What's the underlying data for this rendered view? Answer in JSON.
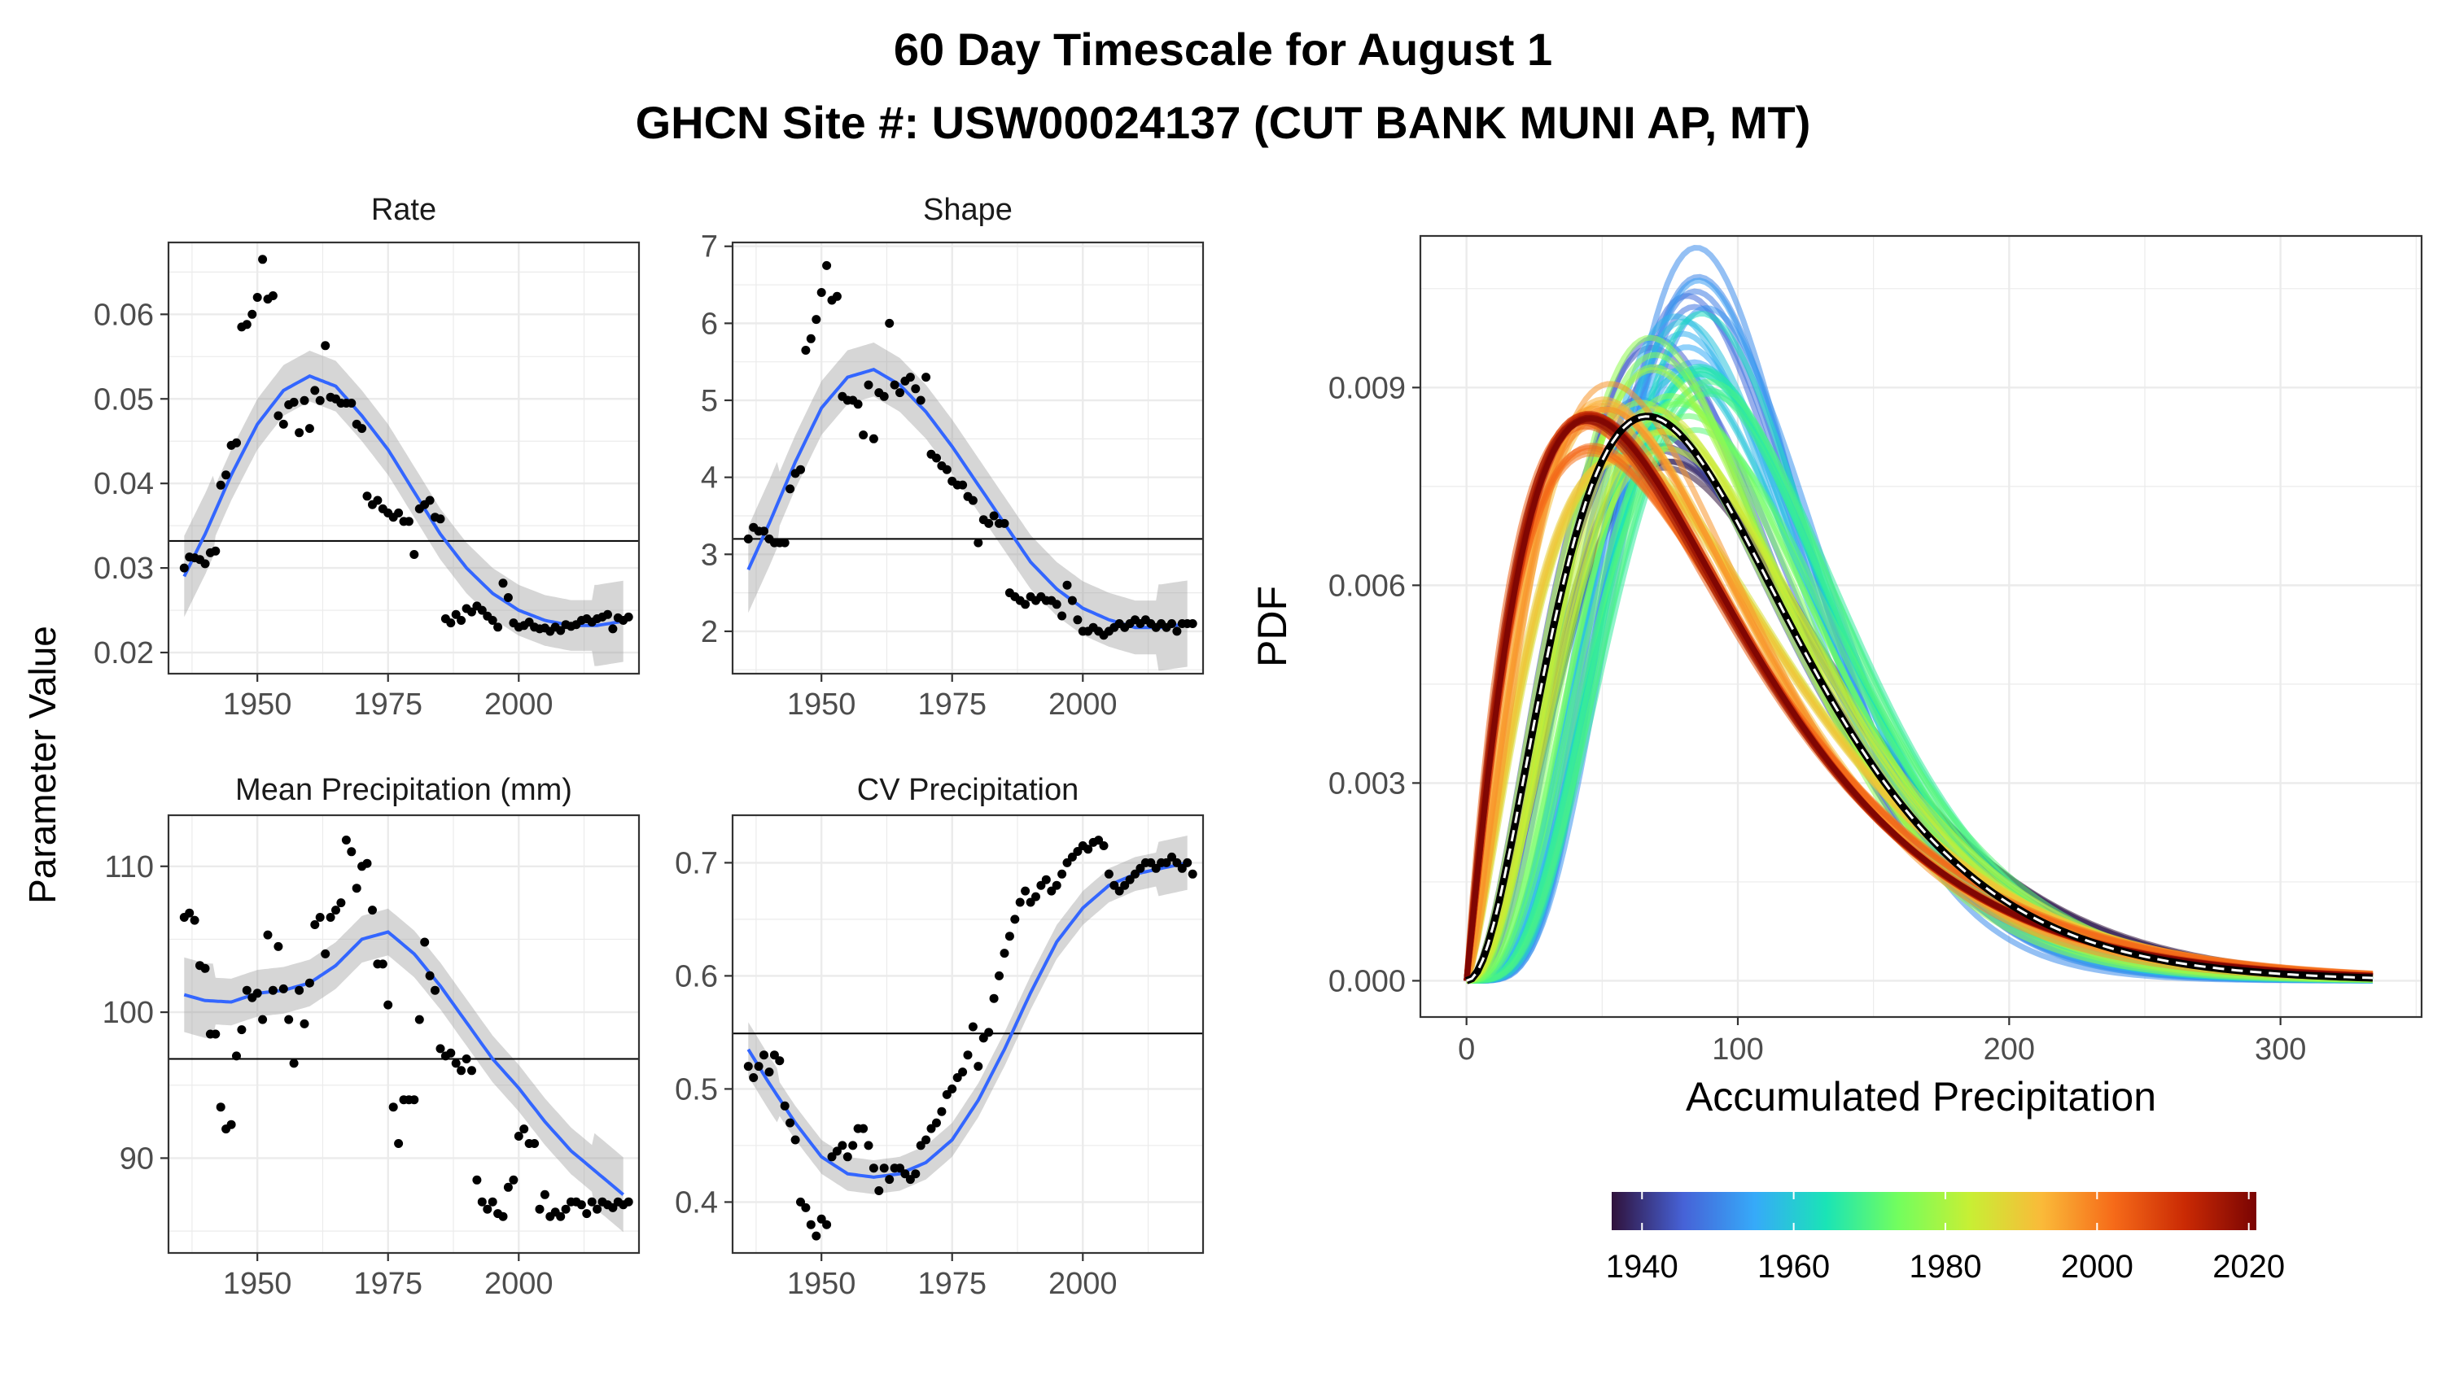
{
  "title": "60 Day Timescale for August 1",
  "subtitle": "GHCN Site #: USW00024137 (CUT BANK MUNI AP, MT)",
  "shared_ylabel": "Parameter Value",
  "chart_data": [
    {
      "type": "scatter",
      "title": "Rate",
      "xlabel": "",
      "ylabel": "Parameter Value",
      "xlim": [
        1933,
        2023
      ],
      "ylim": [
        0.0175,
        0.0685
      ],
      "xticks": [
        1950,
        1975,
        2000
      ],
      "yticks": [
        0.02,
        0.03,
        0.04,
        0.05,
        0.06
      ],
      "ytick_labels": [
        "0.02",
        "0.03",
        "0.04",
        "0.05",
        "0.06"
      ],
      "hline": 0.0332,
      "smooth": {
        "x": [
          1936,
          1940,
          1945,
          1950,
          1955,
          1960,
          1965,
          1970,
          1975,
          1980,
          1985,
          1990,
          1995,
          2000,
          2005,
          2010,
          2015,
          2020
        ],
        "y": [
          0.029,
          0.034,
          0.041,
          0.047,
          0.051,
          0.0527,
          0.0515,
          0.048,
          0.044,
          0.039,
          0.034,
          0.03,
          0.027,
          0.025,
          0.0238,
          0.0232,
          0.0232,
          0.0237
        ]
      },
      "band": 0.003,
      "points": {
        "x": [
          1936,
          1937,
          1938,
          1939,
          1940,
          1941,
          1942,
          1943,
          1944,
          1945,
          1946,
          1947,
          1948,
          1949,
          1950,
          1951,
          1952,
          1953,
          1954,
          1955,
          1956,
          1957,
          1958,
          1959,
          1960,
          1961,
          1962,
          1963,
          1964,
          1965,
          1966,
          1967,
          1968,
          1969,
          1970,
          1971,
          1972,
          1973,
          1974,
          1975,
          1976,
          1977,
          1978,
          1979,
          1980,
          1981,
          1982,
          1983,
          1984,
          1985,
          1986,
          1987,
          1988,
          1989,
          1990,
          1991,
          1992,
          1993,
          1994,
          1995,
          1996,
          1997,
          1998,
          1999,
          2000,
          2001,
          2002,
          2003,
          2004,
          2005,
          2006,
          2007,
          2008,
          2009,
          2010,
          2011,
          2012,
          2013,
          2014,
          2015,
          2016,
          2017,
          2018,
          2019,
          2020,
          2021
        ],
        "y": [
          0.03,
          0.0313,
          0.0312,
          0.031,
          0.0305,
          0.0318,
          0.032,
          0.0398,
          0.041,
          0.0445,
          0.0448,
          0.0585,
          0.0588,
          0.06,
          0.062,
          0.0665,
          0.0618,
          0.0622,
          0.048,
          0.047,
          0.0493,
          0.0496,
          0.046,
          0.0498,
          0.0465,
          0.051,
          0.0498,
          0.0563,
          0.0502,
          0.05,
          0.0495,
          0.0495,
          0.0495,
          0.047,
          0.0465,
          0.0385,
          0.0375,
          0.038,
          0.037,
          0.0365,
          0.036,
          0.0365,
          0.0355,
          0.0355,
          0.0316,
          0.037,
          0.0375,
          0.038,
          0.036,
          0.0358,
          0.024,
          0.0235,
          0.0245,
          0.0238,
          0.0252,
          0.0248,
          0.0255,
          0.025,
          0.0243,
          0.0238,
          0.023,
          0.0282,
          0.0265,
          0.0235,
          0.023,
          0.0232,
          0.0236,
          0.023,
          0.0228,
          0.0229,
          0.0225,
          0.023,
          0.0226,
          0.0233,
          0.0231,
          0.0233,
          0.0238,
          0.024,
          0.0236,
          0.024,
          0.0242,
          0.0245,
          0.0228,
          0.0241,
          0.0238,
          0.0242
        ]
      }
    },
    {
      "type": "scatter",
      "title": "Shape",
      "xlabel": "",
      "ylabel": "",
      "xlim": [
        1933,
        2023
      ],
      "ylim": [
        1.45,
        7.05
      ],
      "xticks": [
        1950,
        1975,
        2000
      ],
      "yticks": [
        2,
        3,
        4,
        5,
        6,
        7
      ],
      "ytick_labels": [
        "2",
        "3",
        "4",
        "5",
        "6",
        "7"
      ],
      "hline": 3.2,
      "smooth": {
        "x": [
          1936,
          1940,
          1945,
          1950,
          1955,
          1960,
          1965,
          1970,
          1975,
          1980,
          1985,
          1990,
          1995,
          2000,
          2005,
          2010,
          2015,
          2020
        ],
        "y": [
          2.8,
          3.4,
          4.2,
          4.9,
          5.3,
          5.4,
          5.2,
          4.85,
          4.4,
          3.9,
          3.4,
          2.9,
          2.55,
          2.3,
          2.15,
          2.05,
          2.05,
          2.1
        ]
      },
      "band": 0.35,
      "points": {
        "x": [
          1936,
          1937,
          1938,
          1939,
          1940,
          1941,
          1942,
          1943,
          1944,
          1945,
          1946,
          1947,
          1948,
          1949,
          1950,
          1951,
          1952,
          1953,
          1954,
          1955,
          1956,
          1957,
          1958,
          1959,
          1960,
          1961,
          1962,
          1963,
          1964,
          1965,
          1966,
          1967,
          1968,
          1969,
          1970,
          1971,
          1972,
          1973,
          1974,
          1975,
          1976,
          1977,
          1978,
          1979,
          1980,
          1981,
          1982,
          1983,
          1984,
          1985,
          1986,
          1987,
          1988,
          1989,
          1990,
          1991,
          1992,
          1993,
          1994,
          1995,
          1996,
          1997,
          1998,
          1999,
          2000,
          2001,
          2002,
          2003,
          2004,
          2005,
          2006,
          2007,
          2008,
          2009,
          2010,
          2011,
          2012,
          2013,
          2014,
          2015,
          2016,
          2017,
          2018,
          2019,
          2020,
          2021
        ],
        "y": [
          3.2,
          3.35,
          3.3,
          3.3,
          3.2,
          3.15,
          3.15,
          3.15,
          3.85,
          4.05,
          4.1,
          5.65,
          5.8,
          6.05,
          6.4,
          6.75,
          6.3,
          6.35,
          5.05,
          5.0,
          5.0,
          4.95,
          4.55,
          5.2,
          4.5,
          5.1,
          5.05,
          6.0,
          5.2,
          5.1,
          5.25,
          5.3,
          5.15,
          5.0,
          5.3,
          4.3,
          4.25,
          4.15,
          4.1,
          3.95,
          3.9,
          3.9,
          3.75,
          3.7,
          3.15,
          3.45,
          3.4,
          3.5,
          3.4,
          3.4,
          2.5,
          2.45,
          2.4,
          2.35,
          2.45,
          2.4,
          2.45,
          2.4,
          2.4,
          2.35,
          2.2,
          2.6,
          2.4,
          2.15,
          2.0,
          2.0,
          2.05,
          2.0,
          1.95,
          2.0,
          2.05,
          2.1,
          2.05,
          2.1,
          2.15,
          2.1,
          2.15,
          2.1,
          2.05,
          2.1,
          2.05,
          2.1,
          2.0,
          2.1,
          2.1,
          2.1
        ]
      }
    },
    {
      "type": "scatter",
      "title": "Mean Precipitation (mm)",
      "xlabel": "",
      "ylabel": "Parameter Value",
      "xlim": [
        1933,
        2023
      ],
      "ylim": [
        83.5,
        113.5
      ],
      "xticks": [
        1950,
        1975,
        2000
      ],
      "yticks": [
        90,
        100,
        110
      ],
      "ytick_labels": [
        "90",
        "100",
        "110"
      ],
      "hline": 96.8,
      "smooth": {
        "x": [
          1936,
          1940,
          1945,
          1950,
          1955,
          1960,
          1965,
          1970,
          1975,
          1980,
          1985,
          1990,
          1995,
          2000,
          2005,
          2010,
          2015,
          2020
        ],
        "y": [
          101.2,
          100.8,
          100.7,
          101.3,
          101.5,
          102.0,
          103.2,
          105.0,
          105.5,
          104.0,
          101.8,
          99.3,
          96.8,
          94.8,
          92.5,
          90.5,
          89.0,
          87.5
        ]
      },
      "band": 1.6,
      "points": {
        "x": [
          1936,
          1937,
          1938,
          1939,
          1940,
          1941,
          1942,
          1943,
          1944,
          1945,
          1946,
          1947,
          1948,
          1949,
          1950,
          1951,
          1952,
          1953,
          1954,
          1955,
          1956,
          1957,
          1958,
          1959,
          1960,
          1961,
          1962,
          1963,
          1964,
          1965,
          1966,
          1967,
          1968,
          1969,
          1970,
          1971,
          1972,
          1973,
          1974,
          1975,
          1976,
          1977,
          1978,
          1979,
          1980,
          1981,
          1982,
          1983,
          1984,
          1985,
          1986,
          1987,
          1988,
          1989,
          1990,
          1991,
          1992,
          1993,
          1994,
          1995,
          1996,
          1997,
          1998,
          1999,
          2000,
          2001,
          2002,
          2003,
          2004,
          2005,
          2006,
          2007,
          2008,
          2009,
          2010,
          2011,
          2012,
          2013,
          2014,
          2015,
          2016,
          2017,
          2018,
          2019,
          2020,
          2021
        ],
        "y": [
          106.5,
          106.8,
          106.3,
          103.2,
          103.0,
          98.5,
          98.5,
          93.5,
          92.0,
          92.3,
          97.0,
          98.8,
          101.5,
          101.0,
          101.3,
          99.5,
          105.3,
          101.5,
          104.5,
          101.6,
          99.5,
          96.5,
          101.5,
          99.2,
          102.0,
          106.0,
          106.5,
          104.0,
          106.5,
          107.0,
          107.5,
          111.8,
          111.0,
          108.5,
          110.0,
          110.2,
          107.0,
          103.3,
          103.3,
          100.5,
          93.5,
          91.0,
          94.0,
          94.0,
          94.0,
          99.5,
          104.8,
          102.5,
          101.5,
          97.5,
          97.0,
          97.2,
          96.5,
          96.0,
          96.8,
          96.0,
          88.5,
          87.0,
          86.5,
          87.0,
          86.2,
          86.0,
          88.0,
          88.5,
          91.5,
          92.0,
          91.0,
          91.0,
          86.5,
          87.5,
          86.0,
          86.3,
          86.0,
          86.5,
          87.0,
          87.0,
          86.8,
          86.2,
          87.0,
          86.5,
          87.0,
          86.8,
          86.6,
          87.0,
          86.8,
          87.0
        ]
      }
    },
    {
      "type": "scatter",
      "title": "CV Precipitation",
      "xlabel": "",
      "ylabel": "",
      "xlim": [
        1933,
        2023
      ],
      "ylim": [
        0.355,
        0.742
      ],
      "xticks": [
        1950,
        1975,
        2000
      ],
      "yticks": [
        0.4,
        0.5,
        0.6,
        0.7
      ],
      "ytick_labels": [
        "0.4",
        "0.5",
        "0.6",
        "0.7"
      ],
      "hline": 0.549,
      "smooth": {
        "x": [
          1936,
          1940,
          1945,
          1950,
          1955,
          1960,
          1965,
          1970,
          1975,
          1980,
          1985,
          1990,
          1995,
          2000,
          2005,
          2010,
          2015,
          2020
        ],
        "y": [
          0.535,
          0.505,
          0.47,
          0.44,
          0.425,
          0.422,
          0.425,
          0.435,
          0.455,
          0.49,
          0.535,
          0.585,
          0.63,
          0.66,
          0.68,
          0.69,
          0.695,
          0.7
        ]
      },
      "band": 0.015,
      "points": {
        "x": [
          1936,
          1937,
          1938,
          1939,
          1940,
          1941,
          1942,
          1943,
          1944,
          1945,
          1946,
          1947,
          1948,
          1949,
          1950,
          1951,
          1952,
          1953,
          1954,
          1955,
          1956,
          1957,
          1958,
          1959,
          1960,
          1961,
          1962,
          1963,
          1964,
          1965,
          1966,
          1967,
          1968,
          1969,
          1970,
          1971,
          1972,
          1973,
          1974,
          1975,
          1976,
          1977,
          1978,
          1979,
          1980,
          1981,
          1982,
          1983,
          1984,
          1985,
          1986,
          1987,
          1988,
          1989,
          1990,
          1991,
          1992,
          1993,
          1994,
          1995,
          1996,
          1997,
          1998,
          1999,
          2000,
          2001,
          2002,
          2003,
          2004,
          2005,
          2006,
          2007,
          2008,
          2009,
          2010,
          2011,
          2012,
          2013,
          2014,
          2015,
          2016,
          2017,
          2018,
          2019,
          2020,
          2021
        ],
        "y": [
          0.52,
          0.51,
          0.52,
          0.53,
          0.515,
          0.53,
          0.525,
          0.485,
          0.47,
          0.455,
          0.4,
          0.395,
          0.38,
          0.37,
          0.385,
          0.38,
          0.44,
          0.445,
          0.45,
          0.44,
          0.45,
          0.465,
          0.465,
          0.45,
          0.43,
          0.41,
          0.43,
          0.42,
          0.43,
          0.43,
          0.425,
          0.42,
          0.425,
          0.45,
          0.455,
          0.465,
          0.47,
          0.48,
          0.495,
          0.5,
          0.51,
          0.515,
          0.53,
          0.555,
          0.52,
          0.545,
          0.55,
          0.58,
          0.6,
          0.62,
          0.635,
          0.65,
          0.665,
          0.675,
          0.665,
          0.67,
          0.68,
          0.685,
          0.675,
          0.68,
          0.69,
          0.7,
          0.705,
          0.71,
          0.715,
          0.712,
          0.718,
          0.72,
          0.715,
          0.69,
          0.68,
          0.675,
          0.68,
          0.685,
          0.69,
          0.695,
          0.7,
          0.7,
          0.695,
          0.7,
          0.7,
          0.705,
          0.7,
          0.695,
          0.7,
          0.69
        ]
      }
    },
    {
      "type": "line",
      "title": "",
      "xlabel": "Accumulated Precipitation",
      "ylabel": "PDF",
      "xlim": [
        -17,
        352
      ],
      "ylim": [
        -0.00055,
        0.0113
      ],
      "xticks": [
        0,
        100,
        200,
        300
      ],
      "xtick_labels": [
        "0",
        "100",
        "200",
        "300"
      ],
      "yticks": [
        0,
        0.003,
        0.006,
        0.009
      ],
      "ytick_labels": [
        "0.000",
        "0.003",
        "0.006",
        "0.009"
      ],
      "grid": true,
      "x_max": 335,
      "series_by_year": {
        "years_from": 1936,
        "years_to": 2021,
        "shape_series": "Shape",
        "mean_series": "Mean Precipitation (mm)"
      },
      "reference_curve": {
        "shape": 3.2,
        "mean": 96.8,
        "style": "black line with white dashes"
      },
      "colorbar": {
        "labels": [
          "1940",
          "1960",
          "1980",
          "2000",
          "2020"
        ],
        "values": [
          1940,
          1960,
          1980,
          2000,
          2020
        ],
        "range": [
          1936,
          2021
        ],
        "colors": [
          "#30123b",
          "#4662d7",
          "#36aaf9",
          "#1ae4b6",
          "#72fe5e",
          "#c8ef34",
          "#faba39",
          "#f66b19",
          "#ca2a04",
          "#7a0403"
        ]
      }
    }
  ]
}
